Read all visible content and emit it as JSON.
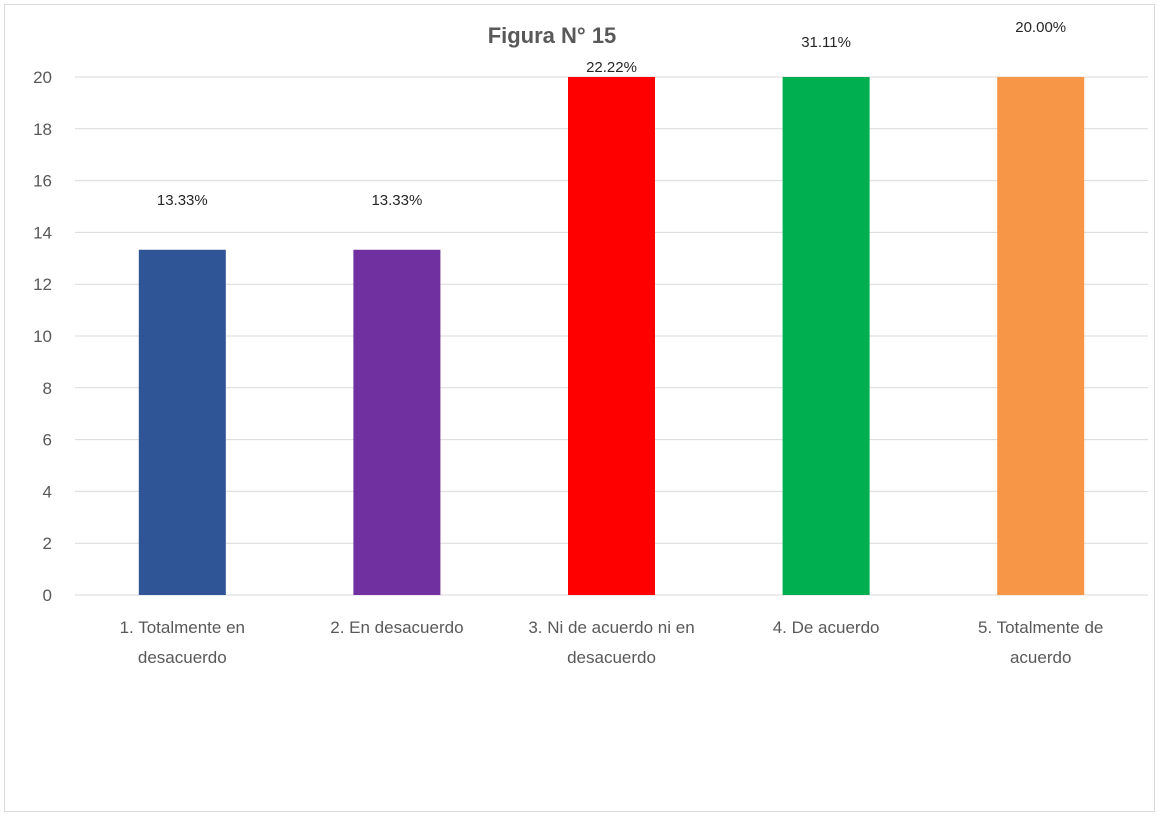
{
  "chart_data": {
    "type": "bar",
    "title": "Figura N° 15",
    "categories": [
      [
        "1. Totalmente en",
        "desacuerdo"
      ],
      [
        "2. En desacuerdo"
      ],
      [
        "3. Ni de acuerdo ni en",
        "desacuerdo"
      ],
      [
        "4. De acuerdo"
      ],
      [
        "5. Totalmente de",
        "acuerdo"
      ]
    ],
    "values": [
      13.33,
      13.33,
      22.22,
      31.11,
      20.0
    ],
    "data_labels": [
      "13.33%",
      "13.33%",
      "22.22%",
      "31.11%",
      "20.00%"
    ],
    "colors": [
      "#2f5597",
      "#7030a0",
      "#ff0000",
      "#00b050",
      "#f79646"
    ],
    "ylim": [
      0,
      20
    ],
    "yticks": [
      0,
      2,
      4,
      6,
      8,
      10,
      12,
      14,
      16,
      18,
      20
    ],
    "grid": true,
    "xlabel": "",
    "ylabel": ""
  }
}
